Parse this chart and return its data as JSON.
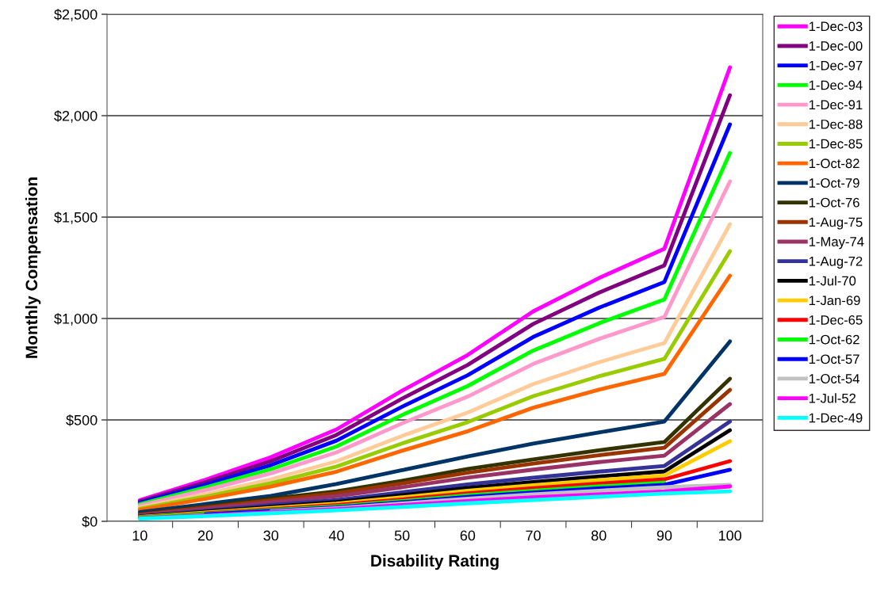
{
  "chart_data": {
    "type": "line",
    "xlabel": "Disability Rating",
    "ylabel": "Monthly Compensation",
    "categories": [
      "10",
      "20",
      "30",
      "40",
      "50",
      "60",
      "70",
      "80",
      "90",
      "100"
    ],
    "ylim": [
      0,
      2500
    ],
    "yticks": [
      {
        "value": 0,
        "label": "$0"
      },
      {
        "value": 500,
        "label": "$500"
      },
      {
        "value": 1000,
        "label": "$1,000"
      },
      {
        "value": 1500,
        "label": "$1,500"
      },
      {
        "value": 2000,
        "label": "$2,000"
      },
      {
        "value": 2500,
        "label": "$2,500"
      }
    ],
    "grid": "y",
    "legend": "right",
    "marker": "none",
    "line_style": "solid",
    "series": [
      {
        "name": "1-Dec-03",
        "color": "#ff00ff",
        "values": [
          104,
          205,
          316,
          453,
          644,
          820,
          1035,
          1199,
          1344,
          2238
        ]
      },
      {
        "name": "1-Dec-00",
        "color": "#800080",
        "values": [
          98,
          193,
          297,
          426,
          605,
          771,
          973,
          1127,
          1262,
          2101
        ]
      },
      {
        "name": "1-Dec-97",
        "color": "#0000ff",
        "values": [
          91,
          180,
          277,
          398,
          565,
          720,
          909,
          1053,
          1180,
          1957
        ]
      },
      {
        "name": "1-Dec-94",
        "color": "#00ff00",
        "values": [
          85,
          167,
          257,
          369,
          524,
          667,
          842,
          976,
          1094,
          1816
        ]
      },
      {
        "name": "1-Dec-91",
        "color": "#ff99cc",
        "values": [
          78,
          154,
          237,
          340,
          483,
          615,
          776,
          899,
          1008,
          1676
        ]
      },
      {
        "name": "1-Dec-88",
        "color": "#ffcc99",
        "values": [
          68,
          134,
          207,
          296,
          421,
          536,
          677,
          784,
          879,
          1465
        ]
      },
      {
        "name": "1-Dec-85",
        "color": "#99cc00",
        "values": [
          62,
          122,
          188,
          270,
          384,
          489,
          617,
          715,
          801,
          1332
        ]
      },
      {
        "name": "1-Oct-82",
        "color": "#ff6600",
        "values": [
          56,
          111,
          171,
          245,
          348,
          444,
          560,
          649,
          727,
          1211
        ]
      },
      {
        "name": "1-Oct-79",
        "color": "#003366",
        "values": [
          45,
          85,
          125,
          184,
          252,
          320,
          383,
          438,
          492,
          887
        ]
      },
      {
        "name": "1-Oct-76",
        "color": "#333300",
        "values": [
          35,
          73,
          112,
          148,
          200,
          258,
          305,
          350,
          391,
          703
        ]
      },
      {
        "name": "1-Aug-75",
        "color": "#993300",
        "values": [
          33,
          68,
          104,
          138,
          187,
          240,
          285,
          326,
          363,
          648
        ]
      },
      {
        "name": "1-May-74",
        "color": "#993366",
        "values": [
          30,
          62,
          94,
          124,
          168,
          215,
          255,
          292,
          324,
          578
        ]
      },
      {
        "name": "1-Aug-72",
        "color": "#333399",
        "values": [
          26,
          52,
          80,
          105,
          143,
          182,
          215,
          245,
          273,
          492
        ]
      },
      {
        "name": "1-Jul-70",
        "color": "#000000",
        "values": [
          24,
          47,
          72,
          95,
          129,
          164,
          194,
          221,
          246,
          449
        ]
      },
      {
        "name": "1-Jan-69",
        "color": "#ffcc00",
        "values": [
          22,
          43,
          66,
          87,
          118,
          151,
          178,
          203,
          226,
          395
        ]
      },
      {
        "name": "1-Dec-65",
        "color": "#ff0000",
        "values": [
          20,
          39,
          60,
          80,
          108,
          138,
          163,
          186,
          207,
          297
        ]
      },
      {
        "name": "1-Oct-62",
        "color": "#00ff00",
        "values": [
          19,
          36,
          56,
          74,
          100,
          128,
          151,
          172,
          191,
          null
        ]
      },
      {
        "name": "1-Oct-57",
        "color": "#0000ff",
        "values": [
          null,
          34,
          52,
          69,
          94,
          120,
          142,
          162,
          180,
          254
        ]
      },
      {
        "name": "1-Oct-54",
        "color": "#c0c0c0",
        "values": [
          null,
          null,
          49,
          65,
          88,
          112,
          133,
          151,
          168,
          180
        ]
      },
      {
        "name": "1-Jul-52",
        "color": "#ff00ff",
        "values": [
          15,
          30,
          45,
          60,
          80,
          100,
          118,
          133,
          148,
          172
        ]
      },
      {
        "name": "1-Dec-49",
        "color": "#00ffff",
        "values": [
          13,
          26,
          40,
          54,
          71,
          89,
          105,
          121,
          137,
          148
        ]
      }
    ]
  }
}
